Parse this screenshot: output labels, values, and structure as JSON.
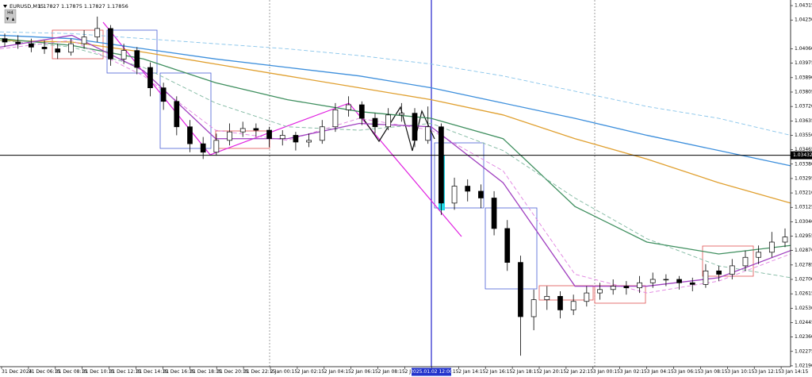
{
  "chart_data": {
    "type": "candlestick",
    "symbol": "EURUSD,M15",
    "ohlc": "1.17827 1.17875 1.17827 1.17856",
    "timeframe_button": "H4",
    "ylim": [
      1.02185,
      1.04348
    ],
    "yticks": [
      1.04315,
      {
        "value": 1.0423,
        "label": "1.04230"
      },
      {
        "value": 1.0406,
        "label": "1.04060"
      },
      1.03975,
      {
        "value": 1.0389,
        "label": "1.03890"
      },
      1.03805,
      {
        "value": 1.0372,
        "label": "1.03720"
      },
      1.03635,
      {
        "value": 1.0355,
        "label": "1.03550"
      },
      1.03465,
      {
        "value": 1.0338,
        "label": "1.03380"
      },
      1.03295,
      {
        "value": 1.0321,
        "label": "1.03210"
      },
      1.03125,
      {
        "value": 1.0304,
        "label": "1.03040"
      },
      1.02955,
      {
        "value": 1.0287,
        "label": "1.02870"
      },
      1.02785,
      {
        "value": 1.027,
        "label": "1.02700"
      },
      1.02615,
      {
        "value": 1.0253,
        "label": "1.02530"
      },
      1.02445,
      {
        "value": 1.0236,
        "label": "1.02360"
      },
      1.02275,
      {
        "value": 1.0219,
        "label": "1.02190"
      }
    ],
    "current_price": 1.03432,
    "time_labels": [
      "31 Dec 2024",
      "31 Dec 06:15",
      "31 Dec 08:15",
      "31 Dec 10:15",
      "31 Dec 12:15",
      "31 Dec 14:15",
      "31 Dec 16:15",
      "31 Dec 18:15",
      "31 Dec 20:15",
      "31 Dec 22:15",
      "2 Jan 00:15",
      "2 Jan 02:15",
      "2 Jan 04:15",
      "2 Jan 06:15",
      "2 Jan 08:15",
      "2 Jan 10:15",
      "2 Jan 12:15",
      "2 Jan 14:15",
      "2 Jan 16:15",
      "2 Jan 18:15",
      "2 Jan 20:15",
      "2 Jan 22:15",
      "3 Jan 00:15",
      "3 Jan 02:15",
      "3 Jan 04:15",
      "3 Jan 06:15",
      "3 Jan 08:15",
      "3 Jan 10:15",
      "3 Jan 12:15",
      "3 Jan 14:15"
    ],
    "crosshair_time": "2025.01.02 12:00",
    "candles": [
      [
        1.0412,
        1.0415,
        1.0407,
        1.041
      ],
      [
        1.041,
        1.0414,
        1.0406,
        1.0409
      ],
      [
        1.0409,
        1.0412,
        1.0404,
        1.0407
      ],
      [
        1.0407,
        1.0411,
        1.0403,
        1.0406
      ],
      [
        1.0406,
        1.0409,
        1.04,
        1.0404
      ],
      [
        1.0404,
        1.0412,
        1.0402,
        1.0409
      ],
      [
        1.0409,
        1.0417,
        1.0406,
        1.0413
      ],
      [
        1.0413,
        1.0425,
        1.041,
        1.0418
      ],
      [
        1.0418,
        1.042,
        1.0396,
        1.04
      ],
      [
        1.04,
        1.0409,
        1.0397,
        1.0405
      ],
      [
        1.0405,
        1.0407,
        1.0391,
        1.0395
      ],
      [
        1.0395,
        1.0398,
        1.0378,
        1.0383
      ],
      [
        1.0383,
        1.0386,
        1.037,
        1.0375
      ],
      [
        1.0375,
        1.0378,
        1.0355,
        1.036
      ],
      [
        1.036,
        1.0364,
        1.0345,
        1.035
      ],
      [
        1.035,
        1.0354,
        1.0341,
        1.0345
      ],
      [
        1.0345,
        1.0356,
        1.0343,
        1.0352
      ],
      [
        1.0352,
        1.0362,
        1.0349,
        1.0357
      ],
      [
        1.0357,
        1.0363,
        1.0354,
        1.0359
      ],
      [
        1.0359,
        1.0362,
        1.0354,
        1.0358
      ],
      [
        1.0358,
        1.036,
        1.0348,
        1.0353
      ],
      [
        1.0353,
        1.0358,
        1.0349,
        1.0355
      ],
      [
        1.0355,
        1.0357,
        1.0346,
        1.0351
      ],
      [
        1.0351,
        1.0356,
        1.0348,
        1.0352
      ],
      [
        1.0352,
        1.0364,
        1.035,
        1.036
      ],
      [
        1.036,
        1.0374,
        1.0357,
        1.037
      ],
      [
        1.037,
        1.0378,
        1.0366,
        1.0373
      ],
      [
        1.0373,
        1.0375,
        1.0361,
        1.0365
      ],
      [
        1.0365,
        1.0368,
        1.0356,
        1.036
      ],
      [
        1.036,
        1.0371,
        1.0358,
        1.0367
      ],
      [
        1.0367,
        1.0374,
        1.0363,
        1.0368
      ],
      [
        1.0368,
        1.0371,
        1.0348,
        1.0352
      ],
      [
        1.0352,
        1.0372,
        1.035,
        1.036
      ],
      [
        1.036,
        1.0362,
        1.0308,
        1.0315
      ],
      [
        1.0315,
        1.033,
        1.0311,
        1.0325
      ],
      [
        1.0325,
        1.0329,
        1.0316,
        1.0322
      ],
      [
        1.0322,
        1.0326,
        1.0312,
        1.0318
      ],
      [
        1.0318,
        1.0322,
        1.0296,
        1.03
      ],
      [
        1.03,
        1.0305,
        1.0275,
        1.028
      ],
      [
        1.028,
        1.0284,
        1.0225,
        1.0248
      ],
      [
        1.0248,
        1.0264,
        1.024,
        1.0258
      ],
      [
        1.0258,
        1.0266,
        1.0252,
        1.026
      ],
      [
        1.026,
        1.0263,
        1.0247,
        1.0252
      ],
      [
        1.0252,
        1.0261,
        1.0249,
        1.0257
      ],
      [
        1.0257,
        1.0266,
        1.0254,
        1.0262
      ],
      [
        1.0262,
        1.0268,
        1.0258,
        1.0264
      ],
      [
        1.0264,
        1.027,
        1.0261,
        1.0266
      ],
      [
        1.0266,
        1.0269,
        1.0261,
        1.0265
      ],
      [
        1.0265,
        1.0272,
        1.0262,
        1.0268
      ],
      [
        1.0268,
        1.0274,
        1.0265,
        1.027
      ],
      [
        1.027,
        1.0273,
        1.0266,
        1.027
      ],
      [
        1.027,
        1.0272,
        1.0264,
        1.0268
      ],
      [
        1.0268,
        1.0271,
        1.0263,
        1.0267
      ],
      [
        1.0267,
        1.0279,
        1.0265,
        1.0275
      ],
      [
        1.0275,
        1.0278,
        1.0269,
        1.0273
      ],
      [
        1.0273,
        1.0282,
        1.027,
        1.0278
      ],
      [
        1.0278,
        1.0287,
        1.0275,
        1.0283
      ],
      [
        1.0283,
        1.029,
        1.0279,
        1.0286
      ],
      [
        1.0286,
        1.0298,
        1.0283,
        1.0292
      ],
      [
        1.0292,
        1.03,
        1.0289,
        1.0295
      ]
    ],
    "series": [
      {
        "color": "#87c4ea",
        "dashed": true,
        "values": [
          1.0416,
          1.0415,
          1.0412,
          1.0409,
          1.0406,
          1.0402,
          1.0397,
          1.039,
          1.0381,
          1.0372,
          1.0365,
          1.0355
        ]
      },
      {
        "color": "#3d8fdc",
        "dashed": false,
        "values": [
          1.0414,
          1.0412,
          1.0406,
          1.04,
          1.0395,
          1.039,
          1.0383,
          1.0374,
          1.0365,
          1.0355,
          1.0346,
          1.0337
        ]
      },
      {
        "color": "#e0a030",
        "dashed": false,
        "values": [
          1.0411,
          1.041,
          1.0404,
          1.0397,
          1.039,
          1.0383,
          1.0376,
          1.0367,
          1.0353,
          1.0341,
          1.0327,
          1.0315
        ]
      },
      {
        "color": "#3f8f5f",
        "dashed": false,
        "values": [
          1.0412,
          1.0408,
          1.04,
          1.0386,
          1.0376,
          1.0369,
          1.0365,
          1.0353,
          1.0313,
          1.0292,
          1.0285,
          1.029
        ]
      },
      {
        "color": "#7fb8a0",
        "dashed": true,
        "values": [
          1.0411,
          1.0407,
          1.0395,
          1.0374,
          1.036,
          1.0358,
          1.0362,
          1.0346,
          1.0318,
          1.0294,
          1.0278,
          1.0271
        ]
      },
      {
        "color": "#e080e0",
        "dashed": true,
        "values": [
          1.0406,
          1.0411,
          1.039,
          1.0358,
          1.0352,
          1.0365,
          1.0358,
          1.0334,
          1.0273,
          1.0262,
          1.0269,
          1.0285
        ]
      },
      {
        "color": "#a040c0",
        "dashed": false,
        "values": [
          1.0407,
          1.0414,
          1.0393,
          1.0353,
          1.0353,
          1.0362,
          1.036,
          1.0327,
          1.0266,
          1.0266,
          1.0271,
          1.0287
        ]
      }
    ]
  }
}
